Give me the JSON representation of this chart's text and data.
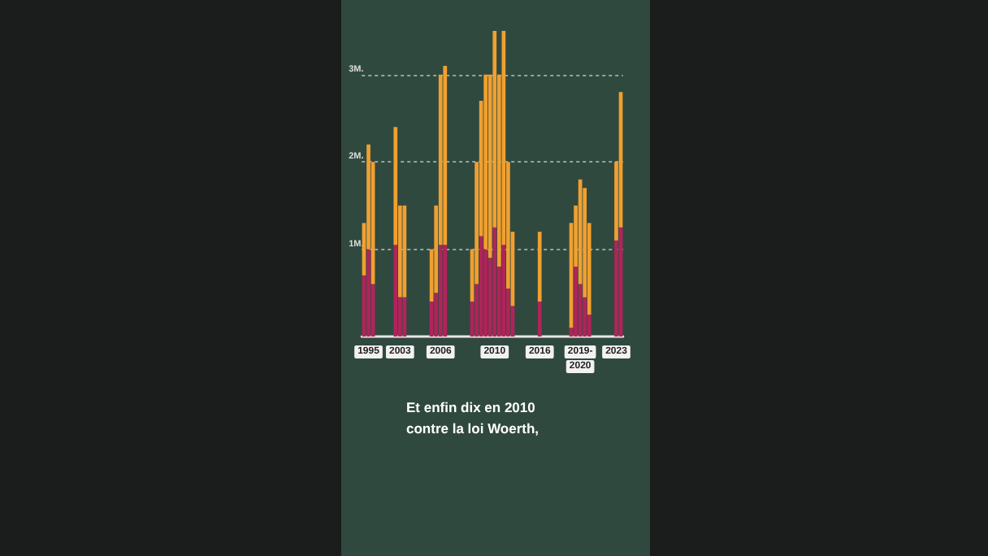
{
  "chart_data": {
    "type": "bar",
    "stacked": true,
    "categories": [
      null,
      "1995",
      null,
      null,
      null,
      null,
      null,
      null,
      "2003",
      null,
      null,
      null,
      null,
      null,
      null,
      null,
      null,
      "2006",
      null,
      null,
      null,
      null,
      null,
      null,
      null,
      null,
      null,
      null,
      null,
      "2010",
      null,
      null,
      null,
      null,
      null,
      null,
      null,
      null,
      null,
      "2016",
      null,
      null,
      null,
      null,
      null,
      null,
      null,
      null,
      "2019-2020",
      null,
      null,
      null,
      null,
      null,
      null,
      null,
      "2023",
      null
    ],
    "series": [
      {
        "color": "#b0245a",
        "values": [
          0.7,
          1.0,
          0.6,
          null,
          null,
          null,
          null,
          1.05,
          0.45,
          0.45,
          null,
          null,
          null,
          null,
          null,
          0.4,
          0.5,
          1.05,
          1.05,
          null,
          null,
          null,
          null,
          null,
          0.4,
          0.6,
          1.15,
          1.0,
          0.9,
          1.25,
          0.8,
          1.05,
          0.55,
          0.35,
          null,
          null,
          null,
          null,
          null,
          0.4,
          null,
          null,
          null,
          null,
          null,
          null,
          0.1,
          0.8,
          0.6,
          0.45,
          0.25,
          null,
          null,
          null,
          null,
          null,
          1.1,
          1.25
        ]
      },
      {
        "color": "#f0a030",
        "values": [
          0.6,
          1.2,
          1.4,
          null,
          null,
          null,
          null,
          1.35,
          1.05,
          1.05,
          null,
          null,
          null,
          null,
          null,
          0.6,
          1.0,
          1.95,
          2.05,
          null,
          null,
          null,
          null,
          null,
          0.6,
          1.4,
          1.55,
          2.0,
          2.1,
          2.25,
          2.2,
          2.45,
          1.45,
          0.85,
          null,
          null,
          null,
          null,
          null,
          0.8,
          null,
          null,
          null,
          null,
          null,
          null,
          1.2,
          0.7,
          1.2,
          1.25,
          1.05,
          null,
          null,
          null,
          null,
          null,
          0.9,
          1.55
        ]
      }
    ],
    "ylim": [
      0,
      3.5
    ],
    "yticks": [
      {
        "value": 1,
        "label": "1M."
      },
      {
        "value": 2,
        "label": "2M."
      },
      {
        "value": 3,
        "label": "3M."
      }
    ],
    "grid": "y",
    "annotations": [
      "Et enfin dix en 2010 contre la loi Woerth,"
    ]
  }
}
